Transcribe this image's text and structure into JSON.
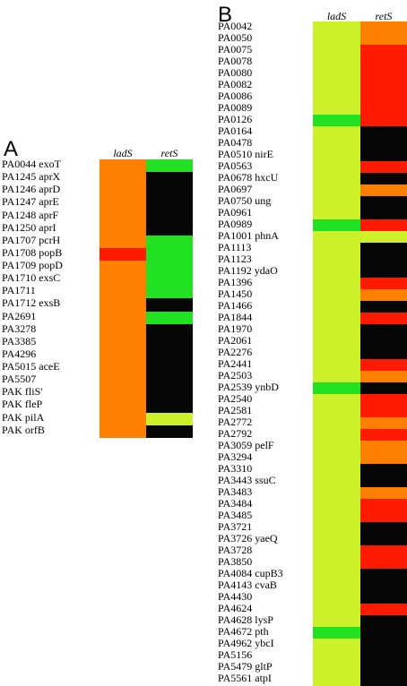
{
  "colors": {
    "orange": "#ff8000",
    "red": "#ff1a00",
    "green": "#22e022",
    "lime": "#ccf02a",
    "black": "#060606"
  },
  "panel_a": {
    "letter": "A",
    "columns": [
      "ladS",
      "retS"
    ],
    "genes": [
      {
        "label": "PA0044 exoT",
        "ladS": "orange",
        "retS": "green"
      },
      {
        "label": "PA1245 aprX",
        "ladS": "orange",
        "retS": "black"
      },
      {
        "label": "PA1246 aprD",
        "ladS": "orange",
        "retS": "black"
      },
      {
        "label": "PA1247 aprE",
        "ladS": "orange",
        "retS": "black"
      },
      {
        "label": "PA1248 aprF",
        "ladS": "orange",
        "retS": "black"
      },
      {
        "label": "PA1250 aprI",
        "ladS": "orange",
        "retS": "black"
      },
      {
        "label": "PA1707 pcrH",
        "ladS": "orange",
        "retS": "green"
      },
      {
        "label": "PA1708 popB",
        "ladS": "red",
        "retS": "green"
      },
      {
        "label": "PA1709 popD",
        "ladS": "orange",
        "retS": "green"
      },
      {
        "label": "PA1710 exsC",
        "ladS": "orange",
        "retS": "green"
      },
      {
        "label": "PA1711",
        "ladS": "orange",
        "retS": "green"
      },
      {
        "label": "PA1712 exsB",
        "ladS": "orange",
        "retS": "black"
      },
      {
        "label": "PA2691",
        "ladS": "orange",
        "retS": "green"
      },
      {
        "label": "PA3278",
        "ladS": "orange",
        "retS": "black"
      },
      {
        "label": "PA3385",
        "ladS": "orange",
        "retS": "black"
      },
      {
        "label": "PA4296",
        "ladS": "orange",
        "retS": "black"
      },
      {
        "label": "PA5015 aceE",
        "ladS": "orange",
        "retS": "black"
      },
      {
        "label": "PA5507",
        "ladS": "orange",
        "retS": "black"
      },
      {
        "label": "PAK fliS'",
        "ladS": "orange",
        "retS": "black"
      },
      {
        "label": "PAK fleP",
        "ladS": "orange",
        "retS": "black"
      },
      {
        "label": "PAK pilA",
        "ladS": "orange",
        "retS": "lime"
      },
      {
        "label": "PAK orfB",
        "ladS": "orange",
        "retS": "black"
      }
    ]
  },
  "panel_b": {
    "letter": "B",
    "columns": [
      "ladS",
      "retS"
    ],
    "genes": [
      {
        "label": "PA0042",
        "ladS": "lime",
        "retS": "orange"
      },
      {
        "label": "PA0050",
        "ladS": "lime",
        "retS": "orange"
      },
      {
        "label": "PA0075",
        "ladS": "lime",
        "retS": "red"
      },
      {
        "label": "PA0078",
        "ladS": "lime",
        "retS": "red"
      },
      {
        "label": "PA0080",
        "ladS": "lime",
        "retS": "red"
      },
      {
        "label": "PA0082",
        "ladS": "lime",
        "retS": "red"
      },
      {
        "label": "PA0086",
        "ladS": "lime",
        "retS": "red"
      },
      {
        "label": "PA0089",
        "ladS": "lime",
        "retS": "red"
      },
      {
        "label": "PA0126",
        "ladS": "green",
        "retS": "red"
      },
      {
        "label": "PA0164",
        "ladS": "lime",
        "retS": "black"
      },
      {
        "label": "PA0478",
        "ladS": "lime",
        "retS": "black"
      },
      {
        "label": "PA0510 nirE",
        "ladS": "lime",
        "retS": "black"
      },
      {
        "label": "PA0563",
        "ladS": "lime",
        "retS": "red"
      },
      {
        "label": "PA0678 hxcU",
        "ladS": "lime",
        "retS": "black"
      },
      {
        "label": "PA0697",
        "ladS": "lime",
        "retS": "orange"
      },
      {
        "label": "PA0750 ung",
        "ladS": "lime",
        "retS": "black"
      },
      {
        "label": "PA0961",
        "ladS": "lime",
        "retS": "black"
      },
      {
        "label": "PA0989",
        "ladS": "green",
        "retS": "red"
      },
      {
        "label": "PA1001 phnA",
        "ladS": "lime",
        "retS": "lime"
      },
      {
        "label": "PA1113",
        "ladS": "lime",
        "retS": "black"
      },
      {
        "label": "PA1123",
        "ladS": "lime",
        "retS": "black"
      },
      {
        "label": "PA1192 ydaO",
        "ladS": "lime",
        "retS": "black"
      },
      {
        "label": "PA1396",
        "ladS": "lime",
        "retS": "red"
      },
      {
        "label": "PA1450",
        "ladS": "lime",
        "retS": "orange"
      },
      {
        "label": "PA1466",
        "ladS": "lime",
        "retS": "black"
      },
      {
        "label": "PA1844",
        "ladS": "lime",
        "retS": "red"
      },
      {
        "label": "PA1970",
        "ladS": "lime",
        "retS": "black"
      },
      {
        "label": "PA2061",
        "ladS": "lime",
        "retS": "black"
      },
      {
        "label": "PA2276",
        "ladS": "lime",
        "retS": "black"
      },
      {
        "label": "PA2441",
        "ladS": "lime",
        "retS": "red"
      },
      {
        "label": "PA2503",
        "ladS": "lime",
        "retS": "orange"
      },
      {
        "label": "PA2539 ynbD",
        "ladS": "green",
        "retS": "black"
      },
      {
        "label": "PA2540",
        "ladS": "lime",
        "retS": "red"
      },
      {
        "label": "PA2581",
        "ladS": "lime",
        "retS": "red"
      },
      {
        "label": "PA2772",
        "ladS": "lime",
        "retS": "orange"
      },
      {
        "label": "PA2792",
        "ladS": "lime",
        "retS": "red"
      },
      {
        "label": "PA3059 pelF",
        "ladS": "lime",
        "retS": "orange"
      },
      {
        "label": "PA3294",
        "ladS": "lime",
        "retS": "orange"
      },
      {
        "label": "PA3310",
        "ladS": "lime",
        "retS": "black"
      },
      {
        "label": "PA3443 ssuC",
        "ladS": "lime",
        "retS": "black"
      },
      {
        "label": "PA3483",
        "ladS": "lime",
        "retS": "orange"
      },
      {
        "label": "PA3484",
        "ladS": "lime",
        "retS": "red"
      },
      {
        "label": "PA3485",
        "ladS": "lime",
        "retS": "red"
      },
      {
        "label": "PA3721",
        "ladS": "lime",
        "retS": "black"
      },
      {
        "label": "PA3726 yaeQ",
        "ladS": "lime",
        "retS": "black"
      },
      {
        "label": "PA3728",
        "ladS": "lime",
        "retS": "red"
      },
      {
        "label": "PA3850",
        "ladS": "lime",
        "retS": "red"
      },
      {
        "label": "PA4084 cupB3",
        "ladS": "lime",
        "retS": "black"
      },
      {
        "label": "PA4143 cvaB",
        "ladS": "lime",
        "retS": "black"
      },
      {
        "label": "PA4430",
        "ladS": "lime",
        "retS": "black"
      },
      {
        "label": "PA4624",
        "ladS": "lime",
        "retS": "red"
      },
      {
        "label": "PA4628 lysP",
        "ladS": "lime",
        "retS": "black"
      },
      {
        "label": "PA4672 pth",
        "ladS": "green",
        "retS": "black"
      },
      {
        "label": "PA4962 ybcI",
        "ladS": "lime",
        "retS": "black"
      },
      {
        "label": "PA5156",
        "ladS": "lime",
        "retS": "black"
      },
      {
        "label": "PA5479 gltP",
        "ladS": "lime",
        "retS": "black"
      },
      {
        "label": "PA5561 atpI",
        "ladS": "lime",
        "retS": "black"
      }
    ]
  }
}
